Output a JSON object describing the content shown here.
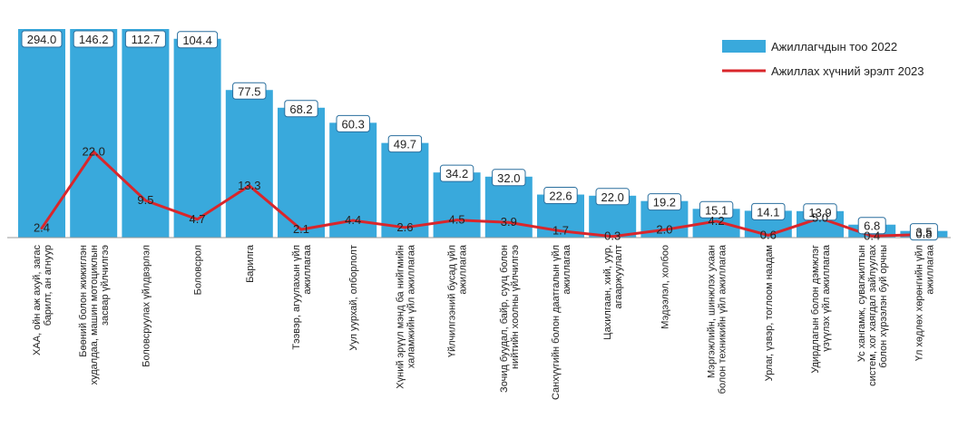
{
  "chart_data": {
    "type": "bar",
    "categories": [
      "ХАА, ойн аж ахуй, загас барилт, ан агнуур",
      "Бөөний болон жижиглэн худалдаа, машин мотоциклын засвар үйлчилгээ",
      "Боловсруулах үйлдвэрлэл",
      "Боловсрол",
      "Барилга",
      "Тээвэр, агуулахын үйл ажиллагаа",
      "Уул уурхай, олборлолт",
      "Хүний эрүүл мэнд ба нийгмийн халамжийн үйл ажиллагаа",
      "Үйлчилгээний бусад үйл ажиллагаа",
      "Зочид буудал, байр, сууц болон нийтийн хоолны үйлчилгээ",
      "Санхүүгийн болон даатгалын үйл ажиллагаа",
      "Цахилгаан, хий, уур, агааржуулалт",
      "Мэдээлэл, холбоо",
      "Мэргэжлийн, шинжлэх ухаан болон техникийн үйл ажиллагаа",
      "Урлаг, үзвэр, тоглоом наадам",
      "Удирдлагын болон дэмжлэг үзүүлэх үйл ажиллагаа",
      "Ус хангамж, сувагжилтын систем, хог хаягдал зайлуулах болон хүрээлэн буй орчны дахин...",
      "Үл хөдлөх хөрөнгийн үйл ажиллагаа"
    ],
    "series": [
      {
        "name": "Ажиллагчдын тоо  2022",
        "kind": "bar",
        "color": "#39a9dc",
        "values": [
          294.0,
          146.2,
          112.7,
          104.4,
          77.5,
          68.2,
          60.3,
          49.7,
          34.2,
          32.0,
          22.6,
          22.0,
          19.2,
          15.1,
          14.1,
          13.9,
          6.8,
          3.5
        ],
        "labels": [
          "294.0",
          "146.2",
          "112.7",
          "104.4",
          "77.5",
          "68.2",
          "60.3",
          "49.7",
          "34.2",
          "32.0",
          "22.6",
          "22.0",
          "19.2",
          "15.1",
          "14.1",
          "13.9",
          "6.8",
          "3.5"
        ]
      },
      {
        "name": "Ажиллах хүчний эрэлт 2023",
        "kind": "line",
        "color": "#d9262b",
        "values": [
          2.4,
          22.0,
          9.5,
          4.7,
          13.3,
          2.1,
          4.4,
          2.6,
          4.5,
          3.9,
          1.7,
          0.3,
          2.0,
          4.2,
          0.6,
          5.0,
          0.4,
          0.8
        ],
        "labels": [
          "2.4",
          "22.0",
          "9.5",
          "4.7",
          "13.3",
          "2.1",
          "4.4",
          "2.6",
          "4.5",
          "3.9",
          "1.7",
          "0.3",
          "2.0",
          "4.2",
          "0.6",
          "5.0",
          "0.4",
          "0.8"
        ]
      }
    ],
    "legend": "top-right",
    "grid": false,
    "bar_axis_note": "first bar truncated at top (broken axis)"
  }
}
